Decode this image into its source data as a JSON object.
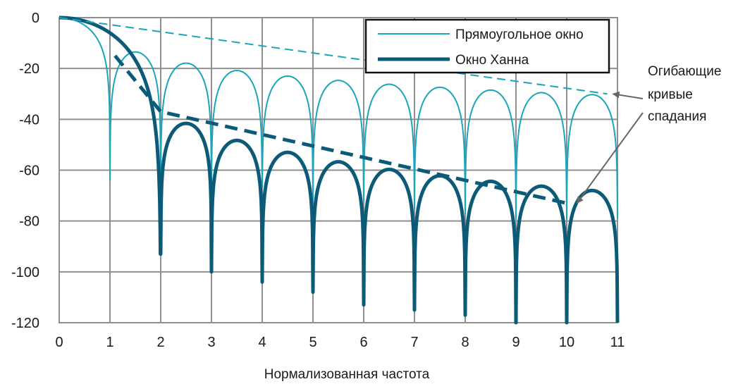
{
  "chart_data": {
    "type": "line",
    "xlabel": "Нормализованная частота",
    "ylabel": "",
    "xlim": [
      0,
      11
    ],
    "ylim": [
      -120,
      0
    ],
    "xticks": [
      "0",
      "1",
      "2",
      "3",
      "4",
      "5",
      "6",
      "7",
      "8",
      "9",
      "10",
      "11"
    ],
    "yticks": [
      "0",
      "-20",
      "-40",
      "-60",
      "-80",
      "-100",
      "-120"
    ],
    "grid": true,
    "legend_placement": "top-right",
    "series": [
      {
        "name": "Прямоугольное окно",
        "color": "#1aa5bd",
        "description": "|sin(pi f)/(pi f)| in dB",
        "nulls": [
          {
            "x": 1,
            "y": -64
          },
          {
            "x": 2,
            "y": -63
          },
          {
            "x": 3,
            "y": -67
          },
          {
            "x": 4,
            "y": -67
          },
          {
            "x": 5,
            "y": -72
          },
          {
            "x": 6,
            "y": -72
          },
          {
            "x": 7,
            "y": -75
          },
          {
            "x": 8,
            "y": -77
          },
          {
            "x": 9,
            "y": -79
          },
          {
            "x": 10,
            "y": -79
          },
          {
            "x": 11,
            "y": -79
          }
        ],
        "peaks": [
          {
            "x": 0,
            "y": 0
          },
          {
            "x": 1.5,
            "y": -13.5
          },
          {
            "x": 2.5,
            "y": -17.9
          },
          {
            "x": 3.5,
            "y": -20.8
          },
          {
            "x": 4.5,
            "y": -23.0
          },
          {
            "x": 5.5,
            "y": -24.7
          },
          {
            "x": 6.5,
            "y": -26.2
          },
          {
            "x": 7.5,
            "y": -27.4
          },
          {
            "x": 8.5,
            "y": -28.5
          },
          {
            "x": 9.5,
            "y": -29.5
          },
          {
            "x": 10.5,
            "y": -30.3
          }
        ]
      },
      {
        "name": "Окно Ханна",
        "color": "#0b5b78",
        "description": "Hann window spectrum in dB",
        "nulls": [
          {
            "x": 2,
            "y": -93
          },
          {
            "x": 3,
            "y": -100
          },
          {
            "x": 4,
            "y": -104
          },
          {
            "x": 5,
            "y": -108
          },
          {
            "x": 6,
            "y": -113
          },
          {
            "x": 7,
            "y": -115
          },
          {
            "x": 8,
            "y": -117
          },
          {
            "x": 9,
            "y": -120
          },
          {
            "x": 10,
            "y": -120
          },
          {
            "x": 11,
            "y": -120
          }
        ],
        "peaks": [
          {
            "x": 0,
            "y": 0
          },
          {
            "x": 2.5,
            "y": -41.6
          },
          {
            "x": 3.5,
            "y": -48.3
          },
          {
            "x": 4.5,
            "y": -53.0
          },
          {
            "x": 5.5,
            "y": -56.7
          },
          {
            "x": 6.5,
            "y": -59.7
          },
          {
            "x": 7.5,
            "y": -62.2
          },
          {
            "x": 8.5,
            "y": -64.4
          },
          {
            "x": 9.5,
            "y": -66.3
          },
          {
            "x": 10.5,
            "y": -68.0
          }
        ]
      }
    ],
    "envelopes": [
      {
        "name": "rect-envelope",
        "color": "#1aa5bd",
        "style": "dashed",
        "points": [
          [
            0,
            0
          ],
          [
            10.8,
            -30
          ]
        ]
      },
      {
        "name": "hann-envelope",
        "color": "#0b5b78",
        "style": "dashed",
        "points": [
          [
            1.1,
            -15
          ],
          [
            2,
            -37
          ],
          [
            10,
            -73
          ]
        ]
      }
    ],
    "annotations": [
      {
        "text_lines": [
          "Огибающие",
          "кривые",
          "спадания"
        ],
        "placement": "right",
        "points_to": [
          [
            10.8,
            -30
          ],
          [
            10.2,
            -73
          ]
        ]
      }
    ]
  }
}
